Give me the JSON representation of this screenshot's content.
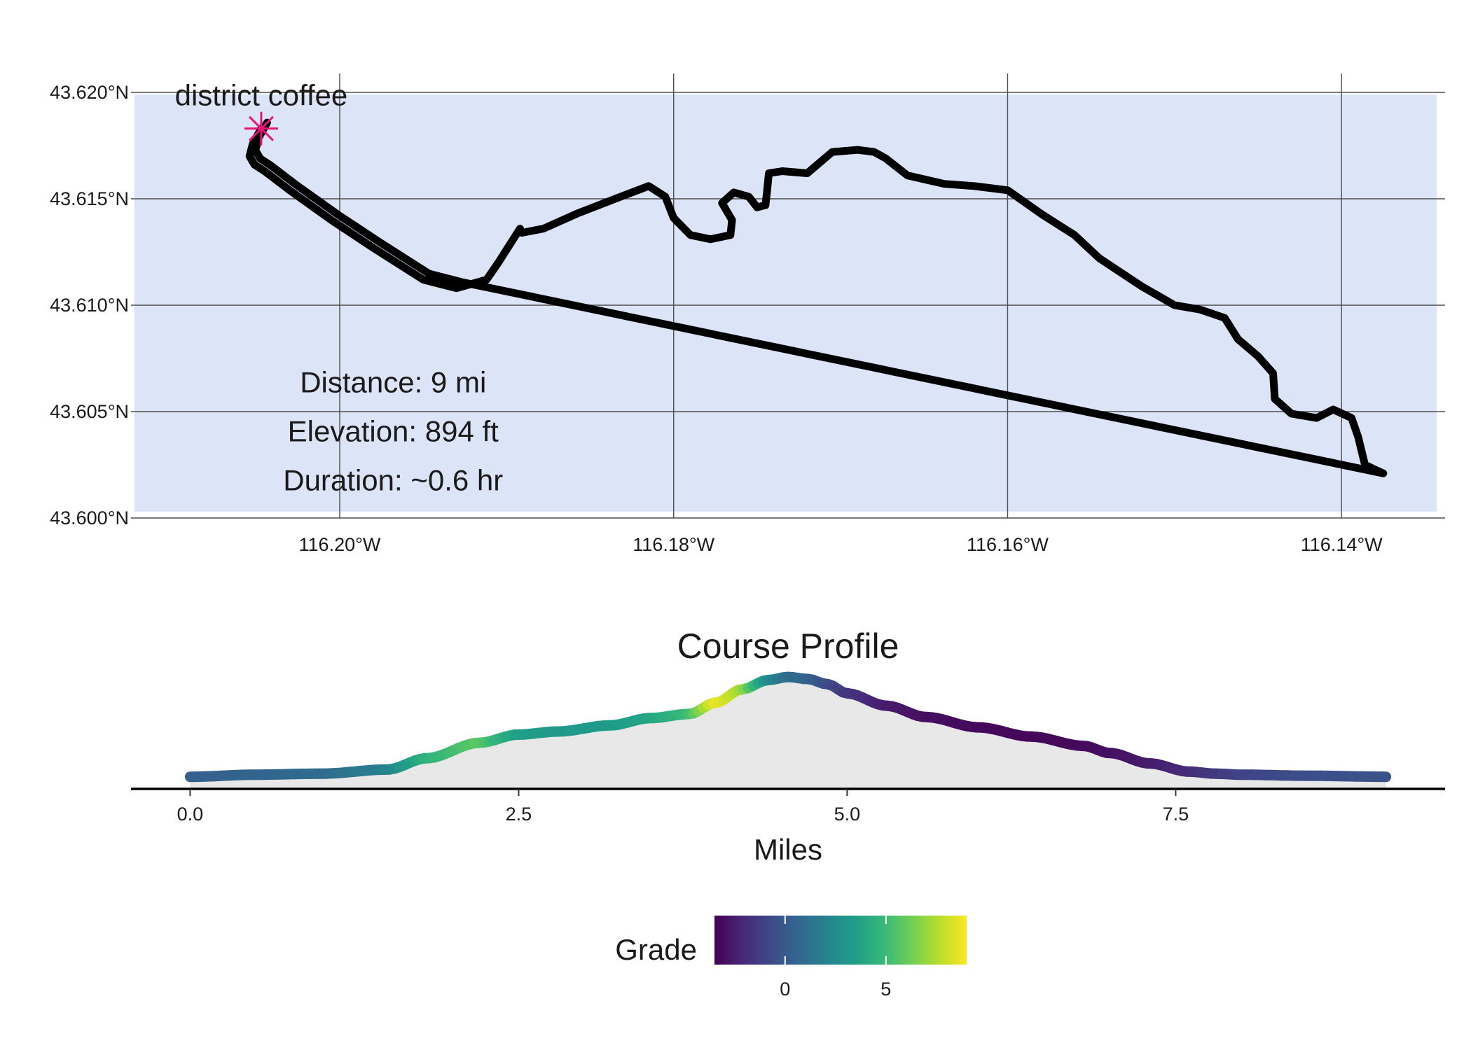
{
  "chart_data": [
    {
      "type": "line",
      "subtype": "route-map",
      "title": "",
      "xlabel": "",
      "ylabel": "",
      "xlim": [
        -116.2125,
        -116.1338
      ],
      "ylim": [
        43.6,
        43.62
      ],
      "x_ticks": [
        -116.2,
        -116.18,
        -116.16,
        -116.14
      ],
      "x_tick_labels": [
        "116.20°W",
        "116.18°W",
        "116.16°W",
        "116.14°W"
      ],
      "y_ticks": [
        43.6,
        43.605,
        43.61,
        43.615,
        43.62
      ],
      "y_tick_labels": [
        "43.600°N",
        "43.605°N",
        "43.610°N",
        "43.615°N",
        "43.620°N"
      ],
      "grid": true,
      "panel_fill": "#dce5f8",
      "panel_extent": {
        "x": [
          -116.2123,
          -116.1343
        ],
        "y": [
          43.6003,
          43.6199
        ]
      },
      "route_color": "#000000",
      "marker_color": "#e8147a",
      "start_point": {
        "x": -116.2047,
        "y": 43.6183,
        "label": "district coffee"
      },
      "route": [
        [
          -116.2047,
          43.6183
        ],
        [
          -116.2052,
          43.6176
        ],
        [
          -116.2054,
          43.617
        ],
        [
          -116.2051,
          43.6166
        ],
        [
          -116.2045,
          43.6163
        ],
        [
          -116.203,
          43.6154
        ],
        [
          -116.2005,
          43.614
        ],
        [
          -116.198,
          43.6127
        ],
        [
          -116.195,
          43.6112
        ],
        [
          -116.193,
          43.6108
        ],
        [
          -116.1912,
          43.6112
        ],
        [
          -116.1905,
          43.612
        ],
        [
          -116.1892,
          43.6136
        ],
        [
          -116.1891,
          43.6134
        ],
        [
          -116.1878,
          43.6136
        ],
        [
          -116.1858,
          43.6143
        ],
        [
          -116.1835,
          43.615
        ],
        [
          -116.1815,
          43.6156
        ],
        [
          -116.1805,
          43.6151
        ],
        [
          -116.18,
          43.6141
        ],
        [
          -116.179,
          43.6133
        ],
        [
          -116.1778,
          43.6131
        ],
        [
          -116.1766,
          43.6133
        ],
        [
          -116.1765,
          43.614
        ],
        [
          -116.1771,
          43.6148
        ],
        [
          -116.1764,
          43.6153
        ],
        [
          -116.1755,
          43.6151
        ],
        [
          -116.175,
          43.6146
        ],
        [
          -116.1745,
          43.6147
        ],
        [
          -116.1744,
          43.6154
        ],
        [
          -116.1743,
          43.6162
        ],
        [
          -116.1735,
          43.6163
        ],
        [
          -116.172,
          43.6162
        ],
        [
          -116.1705,
          43.6172
        ],
        [
          -116.169,
          43.6173
        ],
        [
          -116.168,
          43.6172
        ],
        [
          -116.1673,
          43.6169
        ],
        [
          -116.166,
          43.6161
        ],
        [
          -116.1638,
          43.6157
        ],
        [
          -116.162,
          43.6156
        ],
        [
          -116.16,
          43.6154
        ],
        [
          -116.158,
          43.6143
        ],
        [
          -116.156,
          43.6133
        ],
        [
          -116.1545,
          43.6122
        ],
        [
          -116.152,
          43.6109
        ],
        [
          -116.15,
          43.61
        ],
        [
          -116.1485,
          43.6098
        ],
        [
          -116.147,
          43.6094
        ],
        [
          -116.1462,
          43.6084
        ],
        [
          -116.145,
          43.6076
        ],
        [
          -116.1441,
          43.6068
        ],
        [
          -116.144,
          43.6056
        ],
        [
          -116.143,
          43.6049
        ],
        [
          -116.1415,
          43.6047
        ],
        [
          -116.1405,
          43.6051
        ],
        [
          -116.1394,
          43.6047
        ],
        [
          -116.139,
          43.6038
        ],
        [
          -116.1386,
          43.6025
        ],
        [
          -116.1378,
          43.6022
        ],
        [
          -116.1375,
          43.6021
        ]
      ],
      "annotations": [
        "Distance: 9 mi",
        "Elevation: 894 ft",
        "Duration: ~0.6 hr"
      ]
    },
    {
      "type": "area",
      "subtype": "elevation-profile",
      "title": "Course Profile",
      "xlabel": "Miles",
      "ylabel": "",
      "xlim": [
        -0.45,
        9.55
      ],
      "ylim": [
        0,
        1
      ],
      "x_ticks": [
        0.0,
        2.5,
        5.0,
        7.5
      ],
      "x_tick_labels": [
        "0.0",
        "2.5",
        "5.0",
        "7.5"
      ],
      "area_fill": "#e8e8e8",
      "x": [
        0.0,
        0.5,
        1.0,
        1.5,
        1.8,
        2.2,
        2.5,
        2.8,
        3.2,
        3.5,
        3.8,
        4.0,
        4.2,
        4.4,
        4.55,
        4.7,
        4.85,
        5.0,
        5.3,
        5.6,
        6.0,
        6.4,
        6.8,
        7.0,
        7.3,
        7.6,
        7.8,
        8.0,
        8.5,
        9.1
      ],
      "elevation": [
        0.05,
        0.07,
        0.08,
        0.12,
        0.23,
        0.38,
        0.46,
        0.49,
        0.55,
        0.62,
        0.66,
        0.77,
        0.9,
        0.99,
        1.02,
        1.0,
        0.95,
        0.86,
        0.74,
        0.63,
        0.53,
        0.44,
        0.35,
        0.28,
        0.18,
        0.1,
        0.08,
        0.07,
        0.06,
        0.05
      ],
      "grade": [
        0.3,
        0.5,
        0.8,
        2.0,
        4.5,
        5.8,
        3.5,
        3.2,
        3.3,
        3.8,
        5.0,
        8.8,
        7.2,
        2.5,
        1.0,
        0.5,
        -0.5,
        -1.5,
        -2.5,
        -3.0,
        -3.2,
        -3.3,
        -3.2,
        -3.0,
        -2.6,
        -2.0,
        -1.4,
        -1.0,
        -0.5,
        -0.3
      ],
      "legend": {
        "title": "Grade",
        "position": "bottom",
        "ticks": [
          0,
          5
        ],
        "tick_labels": [
          "0",
          "5"
        ],
        "range": [
          -3.5,
          9.0
        ],
        "colormap": "viridis",
        "colors": [
          "#440154",
          "#482878",
          "#3e4989",
          "#31688e",
          "#26828e",
          "#1f9e89",
          "#35b779",
          "#6ece58",
          "#b5de2b",
          "#fde725"
        ]
      }
    }
  ]
}
